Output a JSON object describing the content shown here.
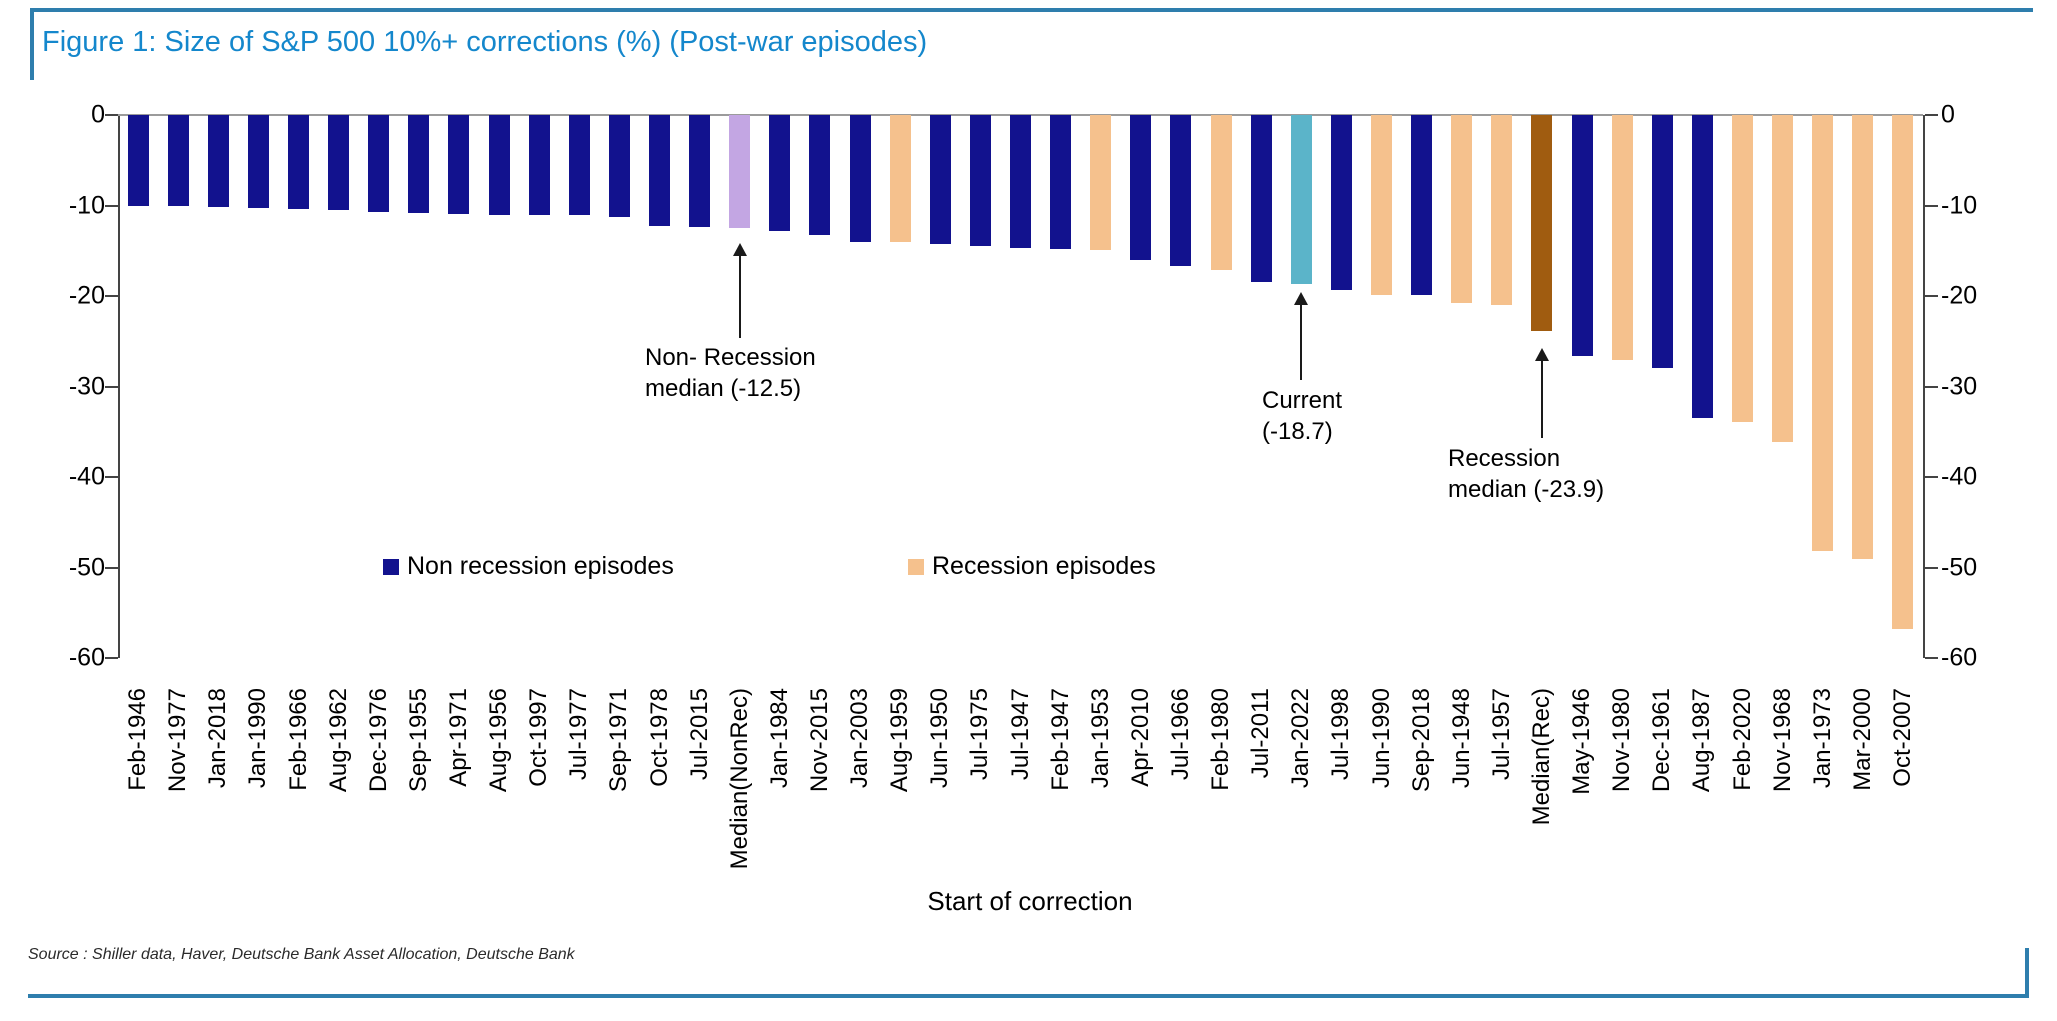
{
  "figure": {
    "source": "Source : Shiller data, Haver, Deutsche Bank Asset Allocation, Deutsche Bank"
  },
  "colors": {
    "non_recession": "#12128e",
    "recession": "#f5c18d",
    "median_nonrec": "#c3a6e3",
    "current": "#5bb4c9",
    "median_rec": "#a05c10",
    "title_blue": "#1487cc",
    "border_blue": "#2e7ead"
  },
  "chart_data": {
    "type": "bar",
    "title": "Figure 1: Size of S&P 500 10%+ corrections (%) (Post-war episodes)",
    "xlabel": "Start of correction",
    "ylabel": "",
    "ylim": [
      -60,
      0
    ],
    "yticks": [
      0,
      -10,
      -20,
      -30,
      -40,
      -50,
      -60
    ],
    "grid": false,
    "legend_position": "inside-left-middle",
    "legend": [
      {
        "label": "Non recession episodes",
        "type": "non_recession"
      },
      {
        "label": "Recession episodes",
        "type": "recession"
      }
    ],
    "bars": [
      {
        "label": "Feb-1946",
        "value": -10.0,
        "type": "non_recession"
      },
      {
        "label": "Nov-1977",
        "value": -10.1,
        "type": "non_recession"
      },
      {
        "label": "Jan-2018",
        "value": -10.2,
        "type": "non_recession"
      },
      {
        "label": "Jan-1990",
        "value": -10.3,
        "type": "non_recession"
      },
      {
        "label": "Feb-1966",
        "value": -10.4,
        "type": "non_recession"
      },
      {
        "label": "Aug-1962",
        "value": -10.5,
        "type": "non_recession"
      },
      {
        "label": "Dec-1976",
        "value": -10.7,
        "type": "non_recession"
      },
      {
        "label": "Sep-1955",
        "value": -10.8,
        "type": "non_recession"
      },
      {
        "label": "Apr-1971",
        "value": -10.9,
        "type": "non_recession"
      },
      {
        "label": "Aug-1956",
        "value": -11.0,
        "type": "non_recession"
      },
      {
        "label": "Oct-1997",
        "value": -11.0,
        "type": "non_recession"
      },
      {
        "label": "Jul-1977",
        "value": -11.1,
        "type": "non_recession"
      },
      {
        "label": "Sep-1971",
        "value": -11.3,
        "type": "non_recession"
      },
      {
        "label": "Oct-1978",
        "value": -12.3,
        "type": "non_recession"
      },
      {
        "label": "Jul-2015",
        "value": -12.4,
        "type": "non_recession"
      },
      {
        "label": "Median(NonRec)",
        "value": -12.5,
        "type": "median_nonrec"
      },
      {
        "label": "Jan-1984",
        "value": -12.8,
        "type": "non_recession"
      },
      {
        "label": "Nov-2015",
        "value": -13.3,
        "type": "non_recession"
      },
      {
        "label": "Jan-2003",
        "value": -14.0,
        "type": "non_recession"
      },
      {
        "label": "Aug-1959",
        "value": -14.0,
        "type": "recession"
      },
      {
        "label": "Jun-1950",
        "value": -14.2,
        "type": "non_recession"
      },
      {
        "label": "Jul-1975",
        "value": -14.5,
        "type": "non_recession"
      },
      {
        "label": "Jul-1947",
        "value": -14.7,
        "type": "non_recession"
      },
      {
        "label": "Feb-1947",
        "value": -14.8,
        "type": "non_recession"
      },
      {
        "label": "Jan-1953",
        "value": -14.9,
        "type": "recession"
      },
      {
        "label": "Apr-2010",
        "value": -16.0,
        "type": "non_recession"
      },
      {
        "label": "Jul-1966",
        "value": -16.7,
        "type": "non_recession"
      },
      {
        "label": "Feb-1980",
        "value": -17.1,
        "type": "recession"
      },
      {
        "label": "Jul-2011",
        "value": -18.4,
        "type": "non_recession"
      },
      {
        "label": "Jan-2022",
        "value": -18.7,
        "type": "current"
      },
      {
        "label": "Jul-1998",
        "value": -19.3,
        "type": "non_recession"
      },
      {
        "label": "Jun-1990",
        "value": -19.9,
        "type": "recession"
      },
      {
        "label": "Sep-2018",
        "value": -19.9,
        "type": "non_recession"
      },
      {
        "label": "Jun-1948",
        "value": -20.8,
        "type": "recession"
      },
      {
        "label": "Jul-1957",
        "value": -21.0,
        "type": "recession"
      },
      {
        "label": "Median(Rec)",
        "value": -23.9,
        "type": "median_rec"
      },
      {
        "label": "May-1946",
        "value": -26.6,
        "type": "non_recession"
      },
      {
        "label": "Nov-1980",
        "value": -27.1,
        "type": "recession"
      },
      {
        "label": "Dec-1961",
        "value": -28.0,
        "type": "non_recession"
      },
      {
        "label": "Aug-1987",
        "value": -33.5,
        "type": "non_recession"
      },
      {
        "label": "Feb-2020",
        "value": -33.9,
        "type": "recession"
      },
      {
        "label": "Nov-1968",
        "value": -36.1,
        "type": "recession"
      },
      {
        "label": "Jan-1973",
        "value": -48.2,
        "type": "recession"
      },
      {
        "label": "Mar-2000",
        "value": -49.1,
        "type": "recession"
      },
      {
        "label": "Oct-2007",
        "value": -56.8,
        "type": "recession"
      }
    ],
    "annotations": [
      {
        "lines": [
          "Non- Recession",
          "median (-12.5)"
        ],
        "target_label": "Median(NonRec)"
      },
      {
        "lines": [
          "Current",
          "(-18.7)"
        ],
        "target_label": "Jan-2022"
      },
      {
        "lines": [
          "Recession",
          "median (-23.9)"
        ],
        "target_label": "Median(Rec)"
      }
    ]
  }
}
